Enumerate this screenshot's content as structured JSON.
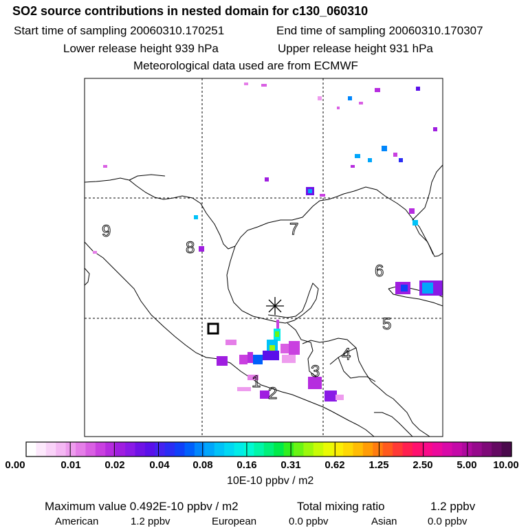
{
  "chart_data": {
    "type": "heatmap",
    "title": "SO2 source contributions in nested domain for c130_060310",
    "start_time": "Start time of sampling 20060310.170251",
    "end_time": "End time of sampling 20060310.170307",
    "lower_release": "Lower release height  939 hPa",
    "upper_release": "Upper release height  931 hPa",
    "met_data": "Meteorological data used are from ECMWF",
    "region_labels": [
      "1",
      "2",
      "3",
      "4",
      "5",
      "6",
      "7",
      "8",
      "9"
    ],
    "colorbar": {
      "ticks": [
        "0.00",
        "0.01",
        "0.02",
        "0.04",
        "0.08",
        "0.16",
        "0.31",
        "0.62",
        "1.25",
        "2.50",
        "5.00",
        "10.00"
      ],
      "units": "10E-10 ppbv / m2",
      "colors": [
        "#ffffff",
        "#fde9fc",
        "#f9d2f8",
        "#f4b8f3",
        "#ee9cee",
        "#e57ee8",
        "#d95fe3",
        "#c940e0",
        "#b62cdf",
        "#9f1ee0",
        "#8a1ae6",
        "#6f12e6",
        "#5a10ea",
        "#4422f0",
        "#2a2df4",
        "#1040f8",
        "#0060fb",
        "#0086fc",
        "#00a6fb",
        "#00c2f8",
        "#00d8f3",
        "#00ece8",
        "#00fad2",
        "#00f6a8",
        "#00f07a",
        "#00ea4a",
        "#30ef20",
        "#6af414",
        "#9cf80c",
        "#c8fb06",
        "#eafa04",
        "#fbee04",
        "#fed804",
        "#ffbc04",
        "#ff9c06",
        "#ff7c10",
        "#ff5a1e",
        "#ff3a36",
        "#ff2050",
        "#ff106e",
        "#fa0a8a",
        "#ec0a9c",
        "#d80aa8",
        "#c40aa8",
        "#ae0a9e",
        "#960a8c",
        "#7e0a78",
        "#640a62",
        "#4a0a4c"
      ]
    },
    "max_value_text": "Maximum value  0.492E-10 ppbv / m2",
    "total_mixing_label": "Total mixing ratio",
    "total_mixing_value": "1.2 ppbv",
    "american_label": "American",
    "american_value": "1.2 ppbv",
    "european_label": "European",
    "european_value": "0.0 ppbv",
    "asian_label": "Asian",
    "asian_value": "0.0 ppbv"
  }
}
